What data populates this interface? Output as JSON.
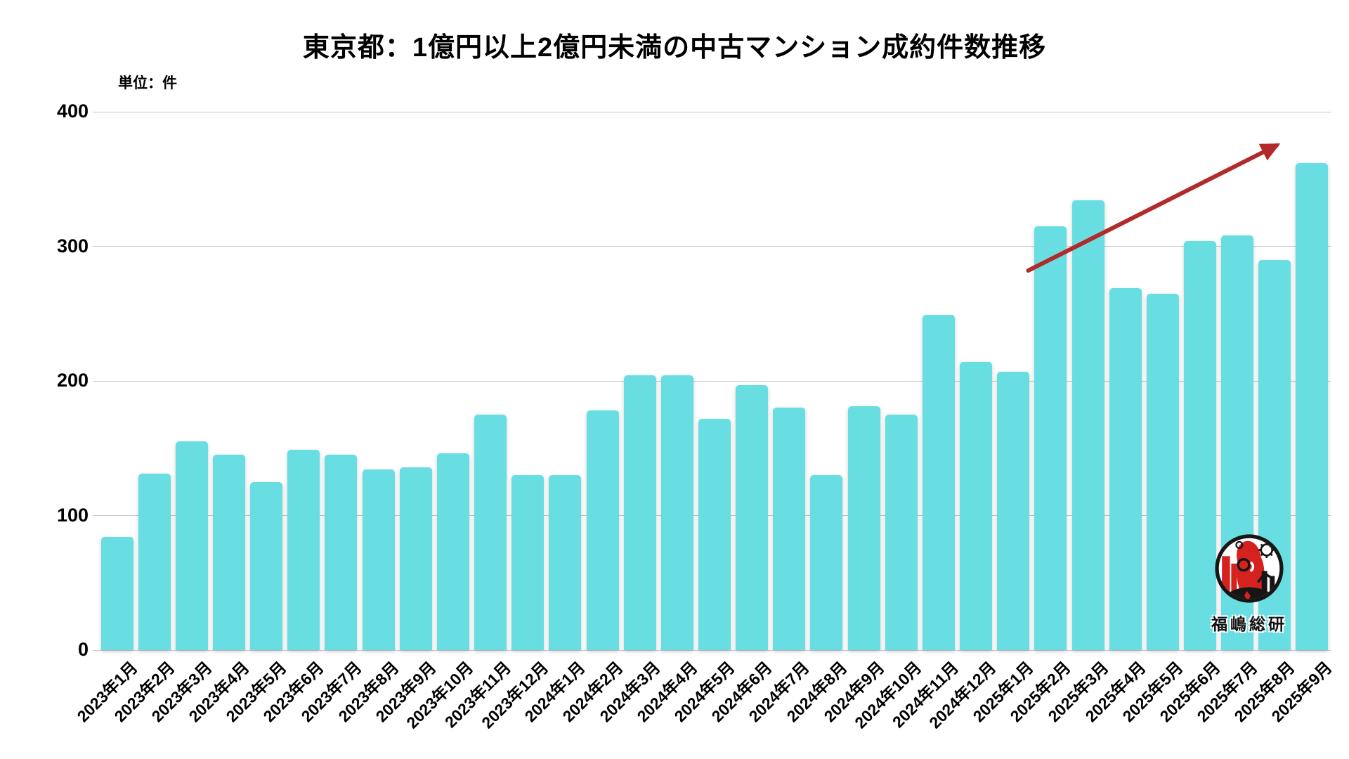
{
  "chart": {
    "title": "東京都：1億円以上2億円未満の中古マンション成約件数推移",
    "unit_label": "単位：件"
  },
  "chart_data": {
    "type": "bar",
    "title": "東京都：1億円以上2億円未満の中古マンション成約件数推移",
    "unit": "件",
    "xlabel": "",
    "ylabel": "件",
    "ylim": [
      0,
      400
    ],
    "y_ticks": [
      0,
      100,
      200,
      300,
      400
    ],
    "grid": true,
    "legend": "none",
    "categories": [
      "2023年1月",
      "2023年2月",
      "2023年3月",
      "2023年4月",
      "2023年5月",
      "2023年6月",
      "2023年7月",
      "2023年8月",
      "2023年9月",
      "2023年10月",
      "2023年11月",
      "2023年12月",
      "2024年1月",
      "2024年2月",
      "2024年3月",
      "2024年4月",
      "2024年5月",
      "2024年6月",
      "2024年7月",
      "2024年8月",
      "2024年9月",
      "2024年10月",
      "2024年11月",
      "2024年12月",
      "2025年1月",
      "2025年2月",
      "2025年3月",
      "2025年4月",
      "2025年5月",
      "2025年6月",
      "2025年7月",
      "2025年8月",
      "2025年9月"
    ],
    "values": [
      84,
      131,
      155,
      145,
      125,
      149,
      145,
      134,
      136,
      146,
      175,
      130,
      130,
      178,
      204,
      204,
      172,
      197,
      180,
      130,
      181,
      175,
      249,
      214,
      207,
      315,
      334,
      269,
      265,
      304,
      308,
      290,
      362
    ],
    "annotation_arrow": {
      "description": "upward trend arrow from 2025年2月 area to 2025年9月 peak",
      "from_month_index": 24.9,
      "from_value": 282,
      "to_month_index": 31.55,
      "to_value": 375,
      "color": "#b22a2a"
    }
  },
  "colors": {
    "bar": "#69dee2",
    "gridline": "#c9c9c9",
    "arrow": "#b22a2a",
    "text": "#000000",
    "logo_red": "#d6221f",
    "logo_black": "#161616"
  },
  "logo": {
    "text": "福嶋総研"
  }
}
